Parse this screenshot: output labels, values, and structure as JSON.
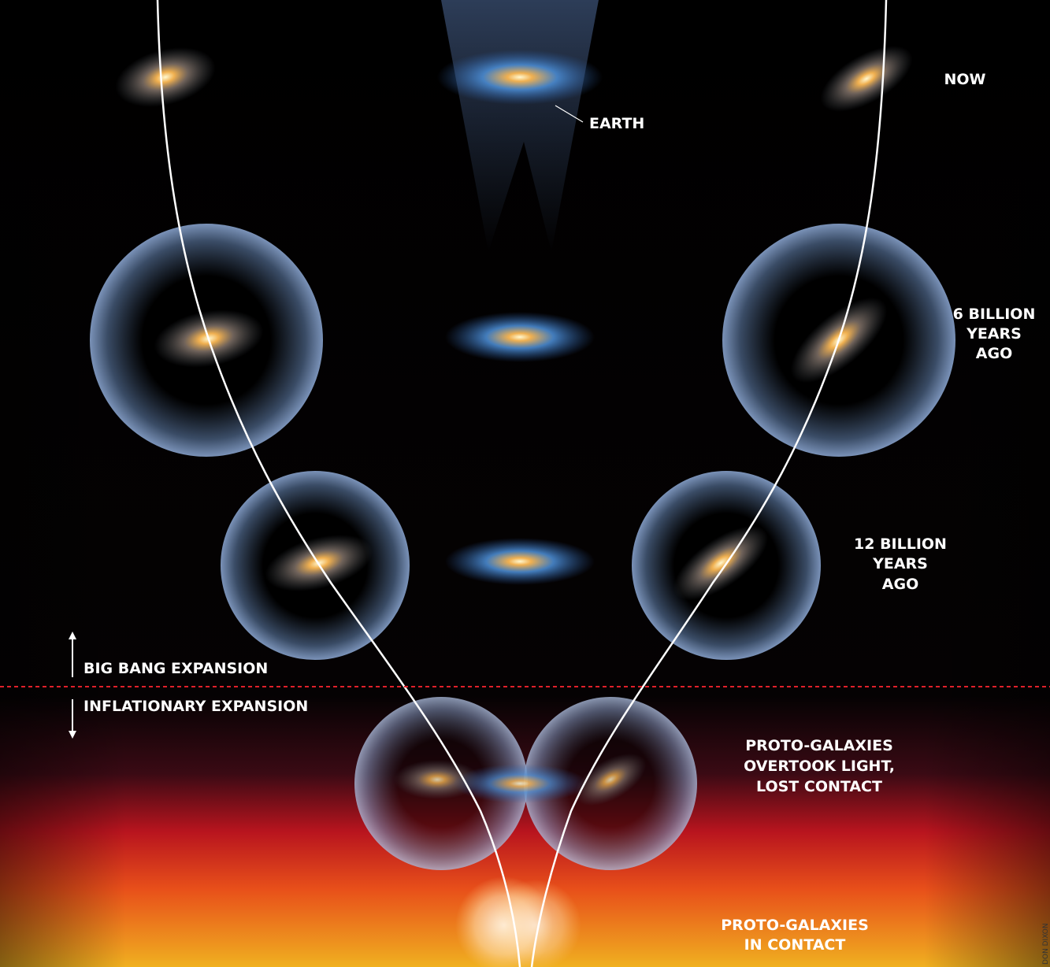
{
  "labels": {
    "now": "NOW",
    "earth": "EARTH",
    "six_billion": [
      "6 BILLION",
      "YEARS",
      "AGO"
    ],
    "twelve_billion": [
      "12 BILLION",
      "YEARS",
      "AGO"
    ],
    "big_bang": "BIG BANG EXPANSION",
    "inflationary": "INFLATIONARY EXPANSION",
    "proto_overtook": [
      "PROTO-GALAXIES",
      "OVERTOOK LIGHT,",
      "LOST CONTACT"
    ],
    "proto_contact": [
      "PROTO-GALAXIES",
      "IN CONTACT"
    ],
    "credit": "DON DIXON"
  }
}
